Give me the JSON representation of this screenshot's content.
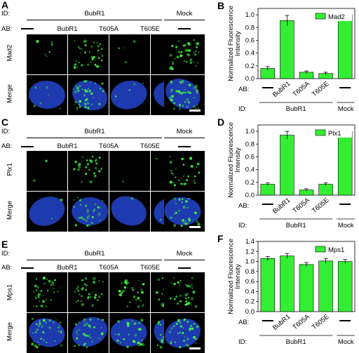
{
  "panels": [
    {
      "letter": "A",
      "id_label": "ID:",
      "ab_label": "AB:",
      "group_label": "BubR1",
      "mock_label": "Mock",
      "columns": [
        "BubR1",
        "T605A",
        "T605E"
      ],
      "row_labels": [
        "Mad2",
        "Merge"
      ],
      "stain": "Mad2"
    },
    {
      "letter": "C",
      "id_label": "ID:",
      "ab_label": "AB:",
      "group_label": "BubR1",
      "mock_label": "Mock",
      "columns": [
        "BubR1",
        "T605A",
        "T605E"
      ],
      "row_labels": [
        "Plx1",
        "Merge"
      ],
      "stain": "Plx1"
    },
    {
      "letter": "E",
      "id_label": "ID:",
      "ab_label": "AB:",
      "group_label": "BubR1",
      "mock_label": "Mock",
      "columns": [
        "BubR1",
        "T605A",
        "T605E"
      ],
      "row_labels": [
        "Mps1",
        "Merge"
      ],
      "stain": "Mps1"
    }
  ],
  "colors": {
    "bar": "#33ee33",
    "green_signal": "#44ff44",
    "dna": "#2244cc"
  },
  "chart_data": [
    {
      "letter": "B",
      "type": "bar",
      "categories": [
        "—",
        "BubR1",
        "T605A",
        "T605E",
        "—"
      ],
      "values": [
        0.16,
        0.91,
        0.1,
        0.08,
        1.0
      ],
      "errors": [
        0.03,
        0.08,
        0.02,
        0.02,
        0.04
      ],
      "legend": "Mad2",
      "ylabel": "Normalized Fluorescence Intensity",
      "ylim": [
        0,
        1.1
      ],
      "yticks": [
        "0.0",
        "0.2",
        "0.4",
        "0.6",
        "0.8",
        "1.0"
      ],
      "ab_label": "AB:",
      "id_label": "ID:",
      "group_label": "BubR1",
      "mock_label": "Mock"
    },
    {
      "letter": "D",
      "type": "bar",
      "categories": [
        "—",
        "BubR1",
        "T605A",
        "T605E",
        "—"
      ],
      "values": [
        0.17,
        0.94,
        0.08,
        0.17,
        1.0
      ],
      "errors": [
        0.02,
        0.06,
        0.02,
        0.02,
        0.04
      ],
      "legend": "Plx1",
      "ylabel": "Normalized Fluorescence Intensity",
      "ylim": [
        0,
        1.1
      ],
      "yticks": [
        "0.0",
        "0.2",
        "0.4",
        "0.6",
        "0.8",
        "1.0"
      ],
      "ab_label": "AB:",
      "id_label": "ID:",
      "group_label": "BubR1",
      "mock_label": "Mock"
    },
    {
      "letter": "F",
      "type": "bar",
      "categories": [
        "—",
        "BubR1",
        "T605A",
        "T605E",
        "—"
      ],
      "values": [
        1.06,
        1.11,
        0.94,
        1.01,
        1.0
      ],
      "errors": [
        0.04,
        0.05,
        0.04,
        0.05,
        0.04
      ],
      "legend": "Mps1",
      "ylabel": "Normalized Fluorescence Intensity",
      "ylim": [
        0,
        1.4
      ],
      "yticks": [
        "0.0",
        "0.2",
        "0.4",
        "0.6",
        "0.8",
        "1.0",
        "1.2",
        "1.4"
      ],
      "ab_label": "AB:",
      "id_label": "ID:",
      "group_label": "BubR1",
      "mock_label": "Mock"
    }
  ]
}
